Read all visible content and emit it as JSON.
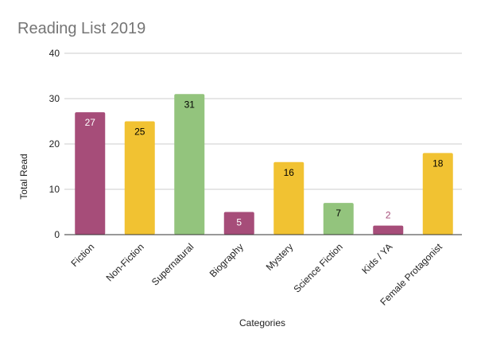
{
  "chart_data": {
    "type": "bar",
    "title": "Reading List 2019",
    "xlabel": "Categories",
    "ylabel": "Total Read",
    "ylim": [
      0,
      40
    ],
    "yticks": [
      0,
      10,
      20,
      30,
      40
    ],
    "grid": true,
    "legend": "none",
    "categories": [
      "Fiction",
      "Non-Fiction",
      "Supernatural",
      "Biography",
      "Mystery",
      "Science Fiction",
      "Kids / YA",
      "Female Protagonist"
    ],
    "values": [
      27,
      25,
      31,
      5,
      16,
      7,
      2,
      18
    ],
    "bar_colors": [
      "#a64d79",
      "#f1c232",
      "#93c47d",
      "#a64d79",
      "#f1c232",
      "#93c47d",
      "#a64d79",
      "#f1c232"
    ],
    "label_colors": [
      "#ffffff",
      "#000000",
      "#000000",
      "#ffffff",
      "#000000",
      "#000000",
      "#a64d79",
      "#000000"
    ]
  }
}
